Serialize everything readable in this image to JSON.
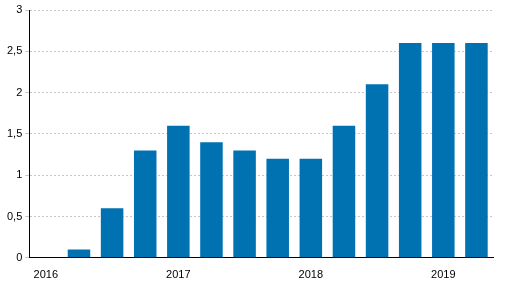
{
  "chart_data": {
    "type": "bar",
    "categories": [
      "2016",
      null,
      null,
      null,
      "2017",
      null,
      null,
      null,
      "2018",
      null,
      null,
      null,
      "2019",
      null
    ],
    "values": [
      0,
      0.1,
      0.6,
      1.3,
      1.6,
      1.4,
      1.3,
      1.2,
      1.2,
      1.6,
      2.1,
      2.6,
      2.6,
      2.6
    ],
    "color": "#0072b2",
    "ylim": [
      0,
      3
    ],
    "yticks": [
      0,
      {
        "value": 0.5,
        "label": "0,5"
      },
      1,
      {
        "value": 1.5,
        "label": "1,5"
      },
      2,
      {
        "value": 2.5,
        "label": "2,5"
      },
      3
    ],
    "grid": true
  }
}
